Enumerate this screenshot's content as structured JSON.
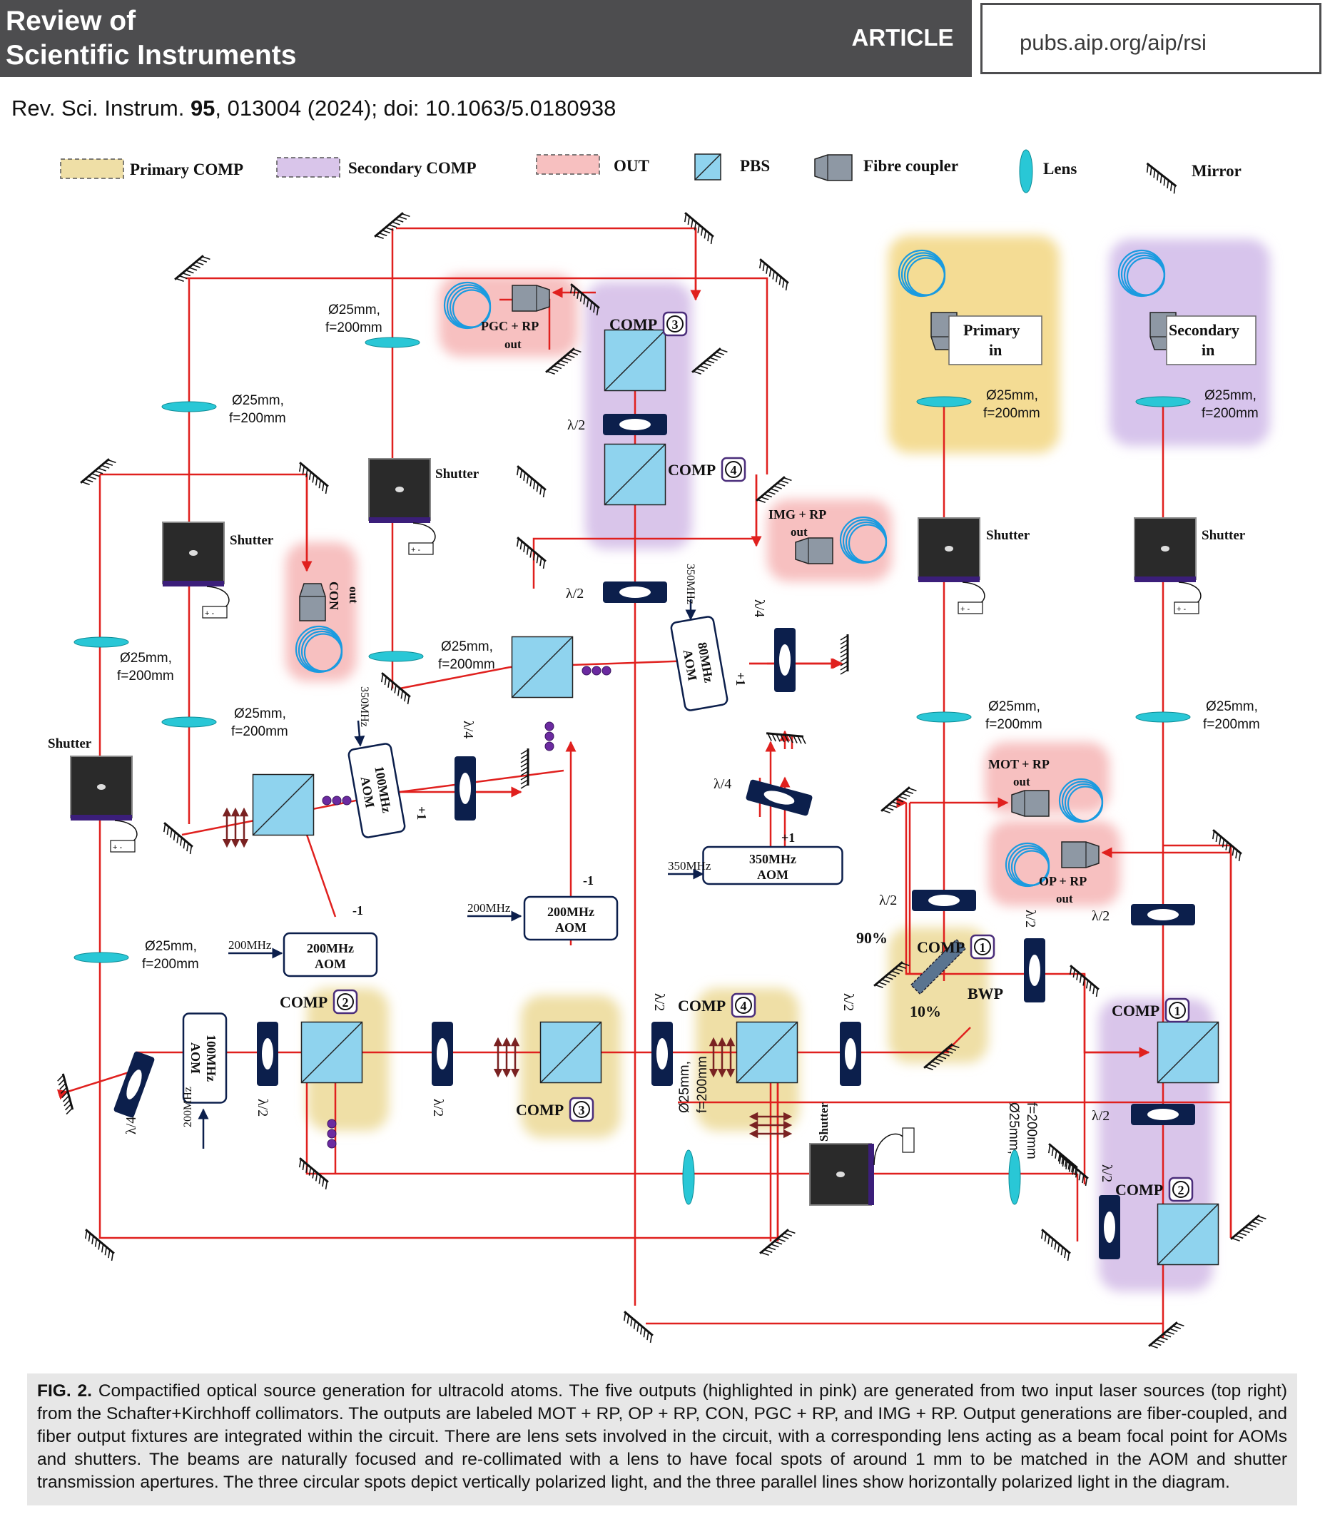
{
  "header": {
    "journal_line1": "Review of",
    "journal_line2": "Scientific Instruments",
    "article_type": "ARTICLE",
    "url": "pubs.aip.org/aip/rsi"
  },
  "citation": {
    "journal": "Rev. Sci. Instrum.",
    "volume": "95",
    "rest": ", 013004 (2024); doi: 10.1063/5.0180938"
  },
  "legend": {
    "primary": "Primary COMP",
    "secondary": "Secondary COMP",
    "out": "OUT",
    "pbs": "PBS",
    "fibre": "Fibre coupler",
    "lens": "Lens",
    "mirror": "Mirror"
  },
  "labels": {
    "comp": "COMP",
    "n1": "1",
    "n2": "2",
    "n3": "3",
    "n4": "4",
    "shutter": "Shutter",
    "lens_d": "Ø25mm,",
    "lens_f": "f=200mm",
    "half": "λ/2",
    "quarter": "λ/4",
    "aom": "AOM",
    "f80": "80MHz",
    "f100": "100MHz",
    "f200": "200MHz",
    "f350": "350MHz",
    "plus1": "+1",
    "minus1": "-1",
    "bwp": "BWP",
    "p90": "90%",
    "p10": "10%",
    "out_word": "out",
    "in_word": "in",
    "primary_word": "Primary",
    "secondary_word": "Secondary",
    "pgc": "PGC + RP",
    "img": "IMG + RP",
    "con": "CON",
    "mot": "MOT + RP",
    "op": "OP + RP",
    "plusminus": "+ -"
  },
  "colors": {
    "beam": "#e0201e",
    "pbs": "#8fd3ee",
    "lens": "#29c7d6",
    "waveplate": "#0c1f4c",
    "primary_zone": "#efdfa6",
    "secondary_zone": "#d9c5ea",
    "out_zone": "#f7c0c0",
    "polarization": "#7a2222"
  },
  "caption": {
    "label": "FIG. 2.",
    "text": "Compactified optical source generation for ultracold atoms. The five outputs (highlighted in pink) are generated from two input laser sources (top right) from the Schafter+Kirchhoff collimators. The outputs are labeled MOT + RP, OP + RP, CON, PGC + RP, and IMG + RP. Output generations are fiber-coupled, and fiber output fixtures are integrated within the circuit. There are lens sets involved in the circuit, with a corresponding lens acting as a beam focal point for AOMs and shutters. The beams are naturally focused and re-collimated with a lens to have focal spots of around 1 mm to be matched in the AOM and shutter transmission apertures. The three circular spots depict vertically polarized light, and the three parallel lines show horizontally polarized light in the diagram."
  }
}
